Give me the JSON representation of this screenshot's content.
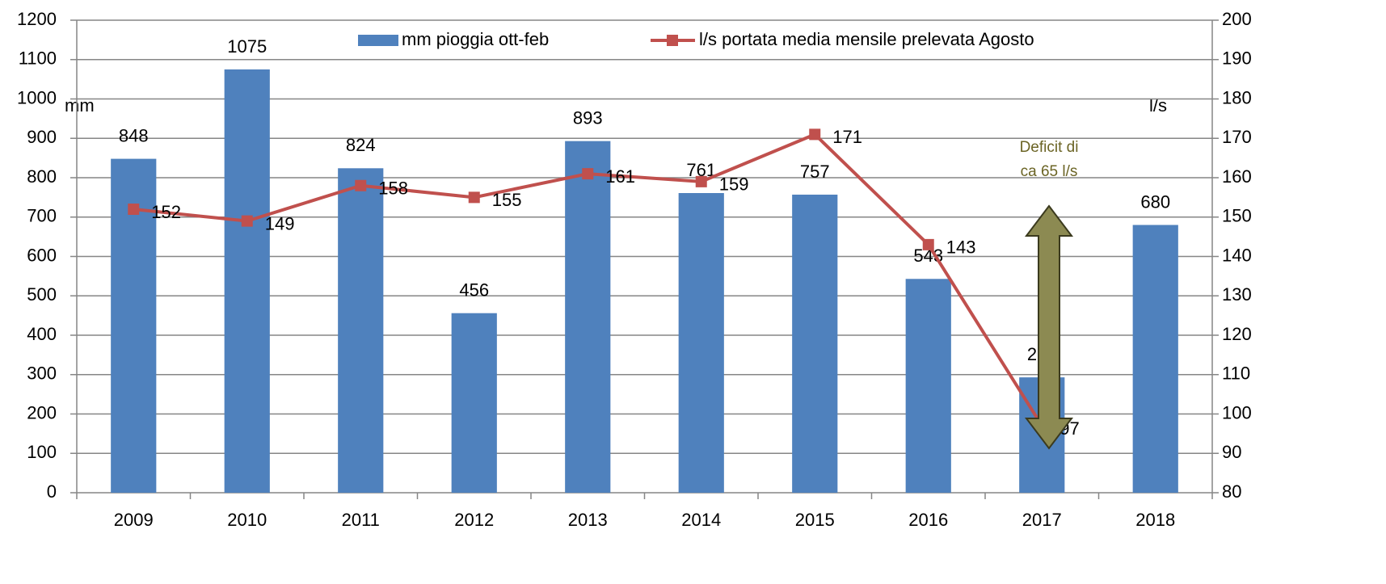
{
  "chart_data": {
    "type": "bar_line",
    "categories": [
      "2009",
      "2010",
      "2011",
      "2012",
      "2013",
      "2014",
      "2015",
      "2016",
      "2017",
      "2018"
    ],
    "series": [
      {
        "name": "mm pioggia ott-feb",
        "type": "bar",
        "color": "#4f81bd",
        "values": [
          848,
          1075,
          824,
          456,
          893,
          761,
          757,
          543,
          293,
          680
        ]
      },
      {
        "name": "l/s portata media mensile prelevata Agosto",
        "type": "line",
        "axis": "y2",
        "color": "#c0504d",
        "values": [
          152,
          149,
          158,
          155,
          161,
          159,
          171,
          143,
          97,
          null
        ]
      }
    ],
    "ylabel": "mm",
    "y2label": "l/s",
    "ylim": [
      0,
      1200
    ],
    "yticks": [
      0,
      100,
      200,
      300,
      400,
      500,
      600,
      700,
      800,
      900,
      1000,
      1100,
      1200
    ],
    "y2lim": [
      80,
      200
    ],
    "y2ticks": [
      80,
      90,
      100,
      110,
      120,
      130,
      140,
      150,
      160,
      170,
      180,
      190,
      200
    ],
    "annotation": [
      "Deficit di",
      "ca 65 l/s"
    ],
    "grid": true,
    "legend": "top"
  }
}
